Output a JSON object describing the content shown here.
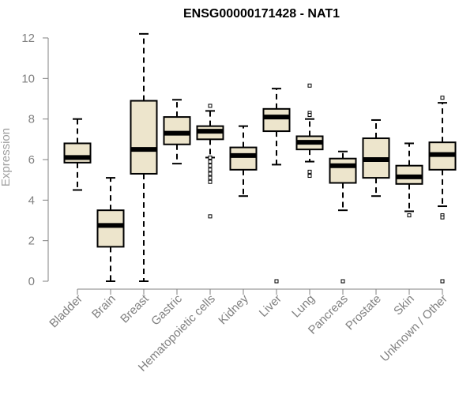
{
  "chart_data": {
    "type": "boxplot",
    "title": "ENSG00000171428 - NAT1",
    "xlabel": "",
    "ylabel": "Expression",
    "ylim": [
      0,
      12
    ],
    "yticks": [
      0,
      2,
      4,
      6,
      8,
      10,
      12
    ],
    "grid": false,
    "box_fill": "#ede5cc",
    "categories": [
      "Bladder",
      "Brain",
      "Breast",
      "Gastric",
      "Hematopoietic cells",
      "Kidney",
      "Liver",
      "Lung",
      "Pancreas",
      "Prostate",
      "Skin",
      "Unknown / Other"
    ],
    "boxes": [
      {
        "name": "Bladder",
        "whisker_low": 4.5,
        "q1": 5.85,
        "median": 6.1,
        "q3": 6.8,
        "whisker_high": 8.0,
        "outliers": []
      },
      {
        "name": "Brain",
        "whisker_low": 0.0,
        "q1": 1.7,
        "median": 2.75,
        "q3": 3.5,
        "whisker_high": 5.1,
        "outliers": []
      },
      {
        "name": "Breast",
        "whisker_low": 0.0,
        "q1": 5.3,
        "median": 6.5,
        "q3": 8.9,
        "whisker_high": 12.2,
        "outliers": []
      },
      {
        "name": "Gastric",
        "whisker_low": 5.8,
        "q1": 6.75,
        "median": 7.3,
        "q3": 8.1,
        "whisker_high": 8.95,
        "outliers": []
      },
      {
        "name": "Hematopoietic cells",
        "whisker_low": 6.1,
        "q1": 7.0,
        "median": 7.4,
        "q3": 7.65,
        "whisker_high": 8.4,
        "outliers": [
          8.65,
          6.1,
          5.9,
          5.7,
          5.5,
          5.3,
          5.1,
          4.9,
          3.2
        ]
      },
      {
        "name": "Kidney",
        "whisker_low": 4.2,
        "q1": 5.5,
        "median": 6.2,
        "q3": 6.6,
        "whisker_high": 7.65,
        "outliers": []
      },
      {
        "name": "Liver",
        "whisker_low": 5.75,
        "q1": 7.4,
        "median": 8.1,
        "q3": 8.5,
        "whisker_high": 9.5,
        "outliers": [
          0.0
        ]
      },
      {
        "name": "Lung",
        "whisker_low": 5.9,
        "q1": 6.5,
        "median": 6.85,
        "q3": 7.15,
        "whisker_high": 8.0,
        "outliers": [
          9.65,
          8.3,
          8.2,
          5.4,
          5.2
        ]
      },
      {
        "name": "Pancreas",
        "whisker_low": 3.5,
        "q1": 4.85,
        "median": 5.7,
        "q3": 6.05,
        "whisker_high": 6.4,
        "outliers": [
          0.0
        ]
      },
      {
        "name": "Prostate",
        "whisker_low": 4.2,
        "q1": 5.1,
        "median": 6.0,
        "q3": 7.05,
        "whisker_high": 7.95,
        "outliers": []
      },
      {
        "name": "Skin",
        "whisker_low": 3.45,
        "q1": 4.8,
        "median": 5.15,
        "q3": 5.7,
        "whisker_high": 6.8,
        "outliers": [
          3.25
        ]
      },
      {
        "name": "Unknown / Other",
        "whisker_low": 3.7,
        "q1": 5.5,
        "median": 6.25,
        "q3": 6.85,
        "whisker_high": 8.8,
        "outliers": [
          9.05,
          3.25,
          3.15,
          0.0
        ]
      }
    ]
  }
}
